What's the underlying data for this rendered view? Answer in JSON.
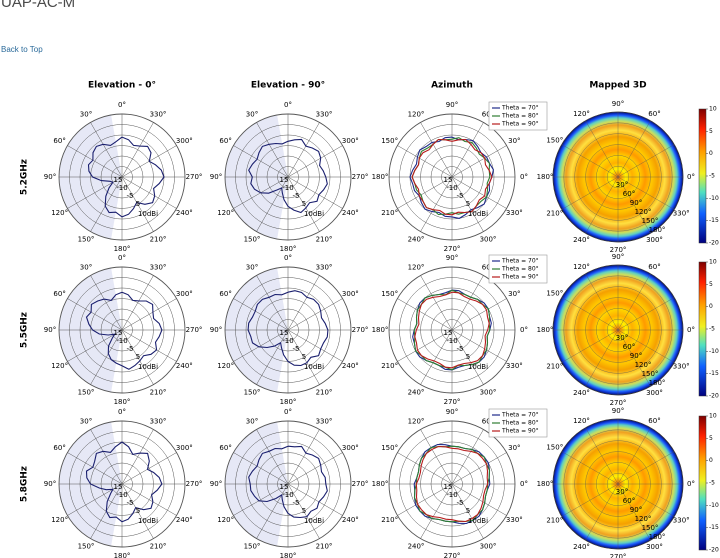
{
  "page": {
    "title": "UAP-AC-M",
    "back_link": "Back to Top"
  },
  "chart_data": {
    "type": "polar-grid",
    "column_titles": [
      "Elevation - 0°",
      "Elevation - 90°",
      "Azimuth",
      "Mapped 3D"
    ],
    "row_labels": [
      "5.2GHz",
      "5.5GHz",
      "5.8GHz"
    ],
    "elevation_angle_labels": [
      "0°",
      "330°",
      "300°",
      "270°",
      "240°",
      "210°",
      "180°",
      "150°",
      "120°",
      "90°",
      "60°",
      "30°"
    ],
    "azimuth_angle_labels": [
      "90°",
      "60°",
      "30°",
      "0°",
      "330°",
      "300°",
      "270°",
      "240°",
      "210°",
      "180°",
      "150°",
      "120°"
    ],
    "mapped3d_angle_labels": [
      "90°",
      "60°",
      "0°",
      "330°",
      "300°",
      "270°",
      "240°",
      "210°",
      "180°",
      "150°",
      "120°"
    ],
    "radial_ticks": [
      "15",
      "-10",
      "-5",
      "5",
      "10dBi"
    ],
    "mapped3d_radial_ticks": [
      "30°",
      "60°",
      "90°",
      "120°",
      "150°",
      "180°"
    ],
    "r_min": -20,
    "r_max": 10,
    "azimuth_legend": [
      "Theta = 70°",
      "Theta = 80°",
      "Theta = 90°"
    ],
    "series_colors": {
      "elevation": "#1a1f6e",
      "theta70": "#1f2a8a",
      "theta80": "#2e7d32",
      "theta90": "#b71c1c"
    },
    "colorbar": {
      "ticks": [
        10,
        5,
        0,
        -5,
        -10,
        -15,
        -20
      ],
      "min": -20,
      "max": 10
    },
    "elevation_gain": [
      [
        -1,
        -2,
        -4,
        -3,
        -1,
        -2,
        -5,
        -3,
        -1,
        0,
        -2,
        -4,
        -2,
        -1,
        -3,
        -6,
        -4,
        -2,
        -1,
        -3,
        -2,
        -4,
        -8,
        -12,
        -15,
        -14,
        -10,
        -6,
        -4,
        -3,
        -4,
        -2,
        -1,
        -2,
        -4,
        -3
      ],
      [
        -2,
        -3,
        -5,
        -4,
        -2,
        -1,
        -3,
        -4,
        -2,
        -1,
        -2,
        -3,
        -1,
        -2,
        -4,
        -3,
        -2,
        -1,
        -3,
        -4,
        -5,
        -7,
        -10,
        -14,
        -16,
        -13,
        -9,
        -6,
        -4,
        -2,
        -3,
        -1,
        -2,
        -3,
        -5,
        -3
      ],
      [
        0,
        -2,
        -5,
        -3,
        -1,
        -3,
        -6,
        -4,
        -2,
        -1,
        -3,
        -5,
        -3,
        -2,
        -4,
        -7,
        -5,
        -3,
        -2,
        -4,
        -3,
        -5,
        -9,
        -13,
        -15,
        -12,
        -9,
        -5,
        -3,
        -2,
        -4,
        -3,
        -1,
        -2,
        -4,
        -2
      ]
    ],
    "elevation90_gain": [
      [
        -3,
        -2,
        -1,
        -3,
        -2,
        -1,
        -2,
        -4,
        -3,
        -2,
        -1,
        -2,
        -3,
        -2,
        -4,
        -3,
        -2,
        -4,
        -6,
        -9,
        -12,
        -14,
        -12,
        -8,
        -5,
        -3,
        -2,
        -3,
        -1,
        -2,
        -3,
        -2,
        -1,
        -2,
        -3,
        -4
      ],
      [
        -2,
        -1,
        -1,
        -2,
        -1,
        -1,
        -2,
        -3,
        -2,
        -1,
        -1,
        -2,
        -2,
        -1,
        -3,
        -2,
        -2,
        -3,
        -5,
        -8,
        -11,
        -13,
        -10,
        -7,
        -4,
        -2,
        -2,
        -1,
        -1,
        -2,
        -2,
        -1,
        -1,
        -2,
        -2,
        -3
      ],
      [
        -2,
        -2,
        -1,
        -3,
        -2,
        -1,
        -2,
        -3,
        -2,
        -2,
        -1,
        -2,
        -3,
        -2,
        -3,
        -2,
        -3,
        -4,
        -6,
        -9,
        -12,
        -14,
        -11,
        -7,
        -4,
        -3,
        -2,
        -2,
        -1,
        -2,
        -3,
        -2,
        -1,
        -2,
        -2,
        -3
      ]
    ],
    "azimuth_gain": [
      [
        [
          -1,
          -2,
          -1,
          0,
          -1,
          -2,
          -1,
          -1,
          0,
          -1,
          -2,
          -1,
          -1,
          0,
          -1,
          -2,
          -1,
          0,
          -1,
          -1,
          -2,
          -1,
          0,
          -1,
          -2,
          -1,
          -1,
          0,
          -1,
          -2,
          -1,
          0,
          -1,
          -1,
          -2,
          -1
        ],
        [
          -2,
          -1,
          -2,
          -1,
          -2,
          -3,
          -2,
          -1,
          -2,
          -2,
          -3,
          -2,
          -1,
          -2,
          -2,
          -1,
          -2,
          -2,
          -3,
          -2,
          -1,
          -2,
          -1,
          -2,
          -3,
          -2,
          -2,
          -1,
          -2,
          -3,
          -2,
          -1,
          -2,
          -2,
          -1,
          -2
        ],
        [
          -3,
          -2,
          -1,
          -2,
          -3,
          -2,
          -2,
          -3,
          -2,
          -1,
          -2,
          -3,
          -2,
          -3,
          -2,
          -1,
          -2,
          -3,
          -2,
          -2,
          -3,
          -2,
          -1,
          -2,
          -2,
          -3,
          -2,
          -1,
          -2,
          -3,
          -2,
          -2,
          -3,
          -2,
          -1,
          -2
        ]
      ],
      [
        [
          -1,
          -1,
          -2,
          -2,
          -1,
          0,
          0,
          -1,
          -1,
          -2,
          -3,
          -2,
          -1,
          0,
          0,
          -1,
          -2,
          -2,
          -1,
          -1,
          -2,
          -2,
          -1,
          0,
          0,
          -1,
          -1,
          -2,
          -3,
          -2,
          -1,
          0,
          0,
          -1,
          -2,
          -2
        ],
        [
          -1,
          -2,
          -2,
          -2,
          -1,
          -1,
          0,
          -1,
          -2,
          -2,
          -3,
          -2,
          -1,
          -1,
          0,
          -1,
          -2,
          -3,
          -1,
          -2,
          -2,
          -2,
          -1,
          -1,
          0,
          -1,
          -2,
          -2,
          -3,
          -2,
          -1,
          -1,
          0,
          -1,
          -2,
          -3
        ],
        [
          -2,
          -2,
          -3,
          -3,
          -2,
          -1,
          -1,
          -2,
          -2,
          -3,
          -4,
          -3,
          -2,
          -1,
          -1,
          -2,
          -3,
          -3,
          -2,
          -2,
          -3,
          -3,
          -2,
          -1,
          -1,
          -2,
          -2,
          -3,
          -4,
          -3,
          -2,
          -1,
          -1,
          -2,
          -3,
          -3
        ]
      ],
      [
        [
          -2,
          -2,
          -2,
          -1,
          0,
          0,
          0,
          -1,
          -2,
          -2,
          -3,
          -3,
          -2,
          -1,
          0,
          0,
          0,
          -1,
          -2,
          -2,
          -2,
          -1,
          0,
          0,
          0,
          -1,
          -2,
          -2,
          -3,
          -3,
          -2,
          -1,
          0,
          0,
          0,
          -1
        ],
        [
          -2,
          -2,
          -2,
          -1,
          -1,
          0,
          -1,
          -1,
          -2,
          -3,
          -3,
          -3,
          -2,
          -1,
          -1,
          0,
          -1,
          -2,
          -2,
          -2,
          -2,
          -1,
          -1,
          0,
          -1,
          -1,
          -2,
          -3,
          -3,
          -3,
          -2,
          -1,
          -1,
          0,
          -1,
          -2
        ],
        [
          -3,
          -3,
          -3,
          -2,
          -1,
          -1,
          -1,
          -2,
          -3,
          -3,
          -4,
          -4,
          -3,
          -2,
          -1,
          -1,
          -1,
          -2,
          -3,
          -3,
          -3,
          -2,
          -1,
          -1,
          -1,
          -2,
          -3,
          -3,
          -4,
          -4,
          -3,
          -2,
          -1,
          -1,
          -1,
          -2
        ]
      ]
    ]
  }
}
